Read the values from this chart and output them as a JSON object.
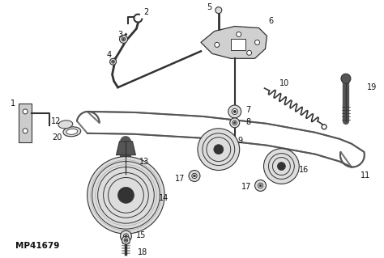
{
  "background_color": "#ffffff",
  "fig_width": 4.74,
  "fig_height": 3.19,
  "dpi": 100,
  "part_label": "MP41679",
  "line_color": "#333333",
  "belt_color": "#888888",
  "pulley_fill": "#dddddd",
  "component_color": "#555555",
  "belt_lw_outer": 3.5,
  "belt_lw_inner": 2.0
}
